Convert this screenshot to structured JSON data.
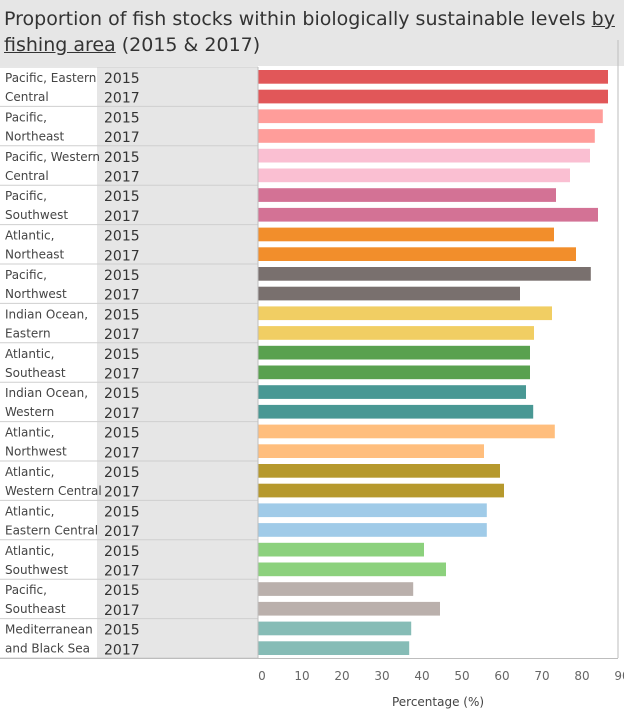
{
  "title": {
    "prefix": "Proportion of fish stocks within biologically sustainable levels ",
    "linked": "by fishing area",
    "suffix": " (2015 & 2017)"
  },
  "chart_data": {
    "type": "bar",
    "orientation": "horizontal",
    "title": "Proportion of fish stocks within biologically sustainable levels by fishing area (2015 & 2017)",
    "xlabel": "Percentage (%)",
    "xlim": [
      0,
      90
    ],
    "xticks": [
      0,
      10,
      20,
      30,
      40,
      50,
      60,
      70,
      80,
      90
    ],
    "years": [
      "2015",
      "2017"
    ],
    "groups": [
      {
        "area": [
          "Pacific, Eastern",
          "Central"
        ],
        "color": "#e15759",
        "values": [
          87.5,
          87.5
        ]
      },
      {
        "area": [
          "Pacific,",
          "Northeast"
        ],
        "color": "#ff9d9a",
        "values": [
          86.2,
          84.2
        ]
      },
      {
        "area": [
          "Pacific, Western",
          "Central"
        ],
        "color": "#fabfd2",
        "values": [
          83.0,
          78.0
        ]
      },
      {
        "area": [
          "Pacific,",
          "Southwest"
        ],
        "color": "#d37295",
        "values": [
          74.5,
          85.0
        ]
      },
      {
        "area": [
          "Atlantic,",
          "Northeast"
        ],
        "color": "#f28e2b",
        "values": [
          74.0,
          79.5
        ]
      },
      {
        "area": [
          "Pacific,",
          "Northwest"
        ],
        "color": "#79706e",
        "values": [
          83.2,
          65.5
        ]
      },
      {
        "area": [
          "Indian Ocean,",
          "Eastern"
        ],
        "color": "#f1ce63",
        "values": [
          73.5,
          69.0
        ]
      },
      {
        "area": [
          "Atlantic,",
          "Southeast"
        ],
        "color": "#59a14f",
        "values": [
          68.0,
          68.0
        ]
      },
      {
        "area": [
          "Indian Ocean,",
          "Western"
        ],
        "color": "#499894",
        "values": [
          67.0,
          68.8
        ]
      },
      {
        "area": [
          "Atlantic,",
          "Northwest"
        ],
        "color": "#ffbe7d",
        "values": [
          74.2,
          56.5
        ]
      },
      {
        "area": [
          "Atlantic,",
          "Western Central"
        ],
        "color": "#b6992d",
        "values": [
          60.5,
          61.5
        ]
      },
      {
        "area": [
          "Atlantic,",
          "Eastern Central"
        ],
        "color": "#a0cbe8",
        "values": [
          57.2,
          57.2
        ]
      },
      {
        "area": [
          "Atlantic,",
          "Southwest"
        ],
        "color": "#8cd17d",
        "values": [
          41.5,
          47.0
        ]
      },
      {
        "area": [
          "Pacific,",
          "Southeast"
        ],
        "color": "#bab0ac",
        "values": [
          38.8,
          45.5
        ]
      },
      {
        "area": [
          "Mediterranean",
          "and Black Sea"
        ],
        "color": "#86bcb6",
        "values": [
          38.3,
          37.8
        ]
      }
    ]
  }
}
